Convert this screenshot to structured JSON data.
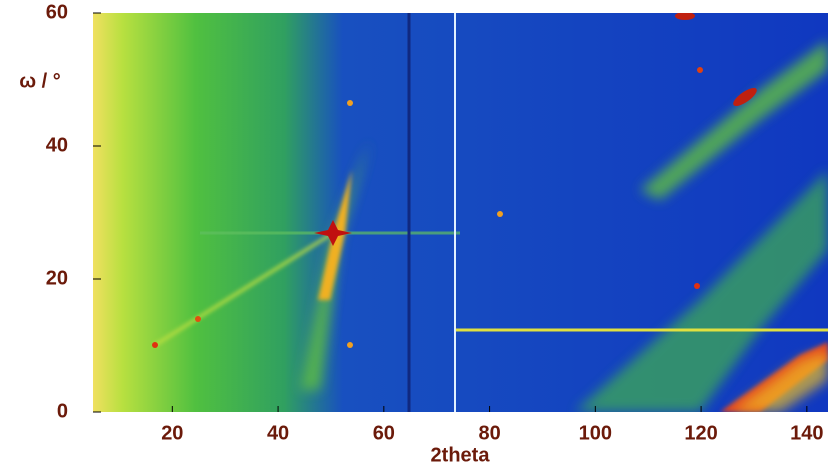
{
  "chart_data": {
    "type": "heatmap",
    "xlabel": "2theta",
    "ylabel": "ω / °",
    "xlim": [
      5,
      144
    ],
    "ylim": [
      0,
      60
    ],
    "xticks": [
      20,
      40,
      60,
      80,
      100,
      120,
      140
    ],
    "yticks": [
      0,
      20,
      40,
      60
    ],
    "color": "#6b1a0a"
  }
}
